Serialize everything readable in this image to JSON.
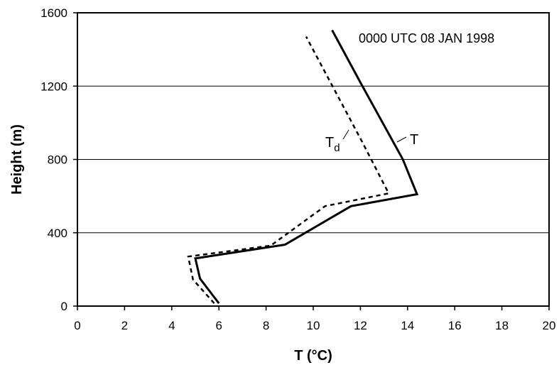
{
  "chart_data": {
    "type": "line",
    "title": "",
    "annotation": "0000 UTC 08 JAN 1998",
    "xlabel": "T (°C)",
    "ylabel": "Height (m)",
    "xlim": [
      0,
      20
    ],
    "ylim": [
      0,
      1600
    ],
    "x_ticks": [
      0,
      2,
      4,
      6,
      8,
      10,
      12,
      14,
      16,
      18,
      20
    ],
    "y_ticks": [
      0,
      400,
      800,
      1200,
      1600
    ],
    "grid": "horizontal",
    "series": [
      {
        "name": "T",
        "style": "solid",
        "color": "#000000",
        "points": [
          [
            6.0,
            15
          ],
          [
            5.2,
            150
          ],
          [
            5.0,
            260
          ],
          [
            8.8,
            335
          ],
          [
            11.6,
            545
          ],
          [
            14.4,
            610
          ],
          [
            13.8,
            800
          ],
          [
            12.0,
            1220
          ],
          [
            10.8,
            1505
          ]
        ]
      },
      {
        "name": "Td",
        "label_main": "T",
        "label_sub": "d",
        "style": "dashed",
        "color": "#000000",
        "points": [
          [
            5.8,
            15
          ],
          [
            4.9,
            145
          ],
          [
            4.7,
            270
          ],
          [
            8.2,
            330
          ],
          [
            10.5,
            545
          ],
          [
            13.2,
            615
          ],
          [
            12.1,
            890
          ],
          [
            9.7,
            1470
          ]
        ]
      }
    ]
  }
}
